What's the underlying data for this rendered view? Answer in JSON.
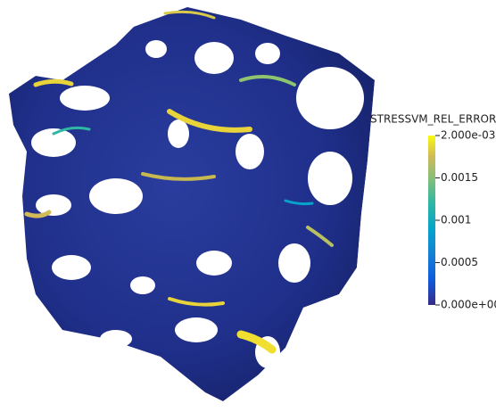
{
  "colorbar": {
    "title": "STRESSVM_REL_ERROR",
    "range": [
      0,
      0.002
    ],
    "ticks": [
      {
        "value": 0.002,
        "label": "2.000e-03"
      },
      0.0015,
      0.001,
      0.0005,
      {
        "value": 0,
        "label": "0.000e+00"
      }
    ]
  }
}
